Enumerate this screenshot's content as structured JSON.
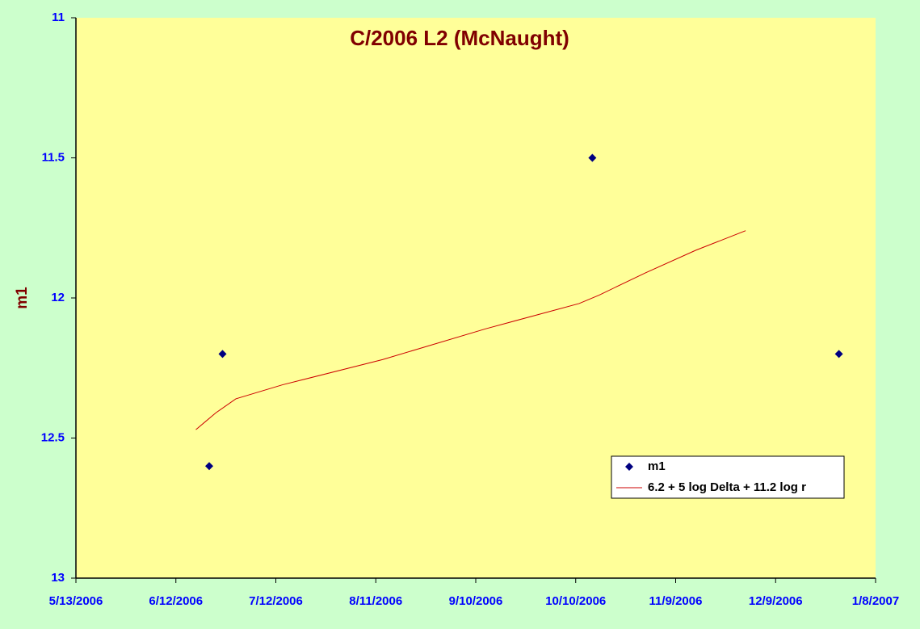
{
  "chart_data": {
    "type": "scatter",
    "title": "C/2006 L2 (McNaught)",
    "ylabel": "m1",
    "ylim": [
      11,
      13
    ],
    "y_reversed": true,
    "yticks": [
      11,
      11.5,
      12,
      12.5,
      13
    ],
    "xlim": [
      "2006-05-13",
      "2007-01-08"
    ],
    "xticks": [
      {
        "value": "2006-05-13",
        "label": "5/13/2006"
      },
      {
        "value": "2006-06-12",
        "label": "6/12/2006"
      },
      {
        "value": "2006-07-12",
        "label": "7/12/2006"
      },
      {
        "value": "2006-08-11",
        "label": "8/11/2006"
      },
      {
        "value": "2006-09-10",
        "label": "9/10/2006"
      },
      {
        "value": "2006-10-10",
        "label": "10/10/2006"
      },
      {
        "value": "2006-11-09",
        "label": "11/9/2006"
      },
      {
        "value": "2006-12-09",
        "label": "12/9/2006"
      },
      {
        "value": "2007-01-08",
        "label": "1/8/2007"
      }
    ],
    "legend": "lower right",
    "series": [
      {
        "name": "m1",
        "kind": "markers",
        "color": "#000080",
        "x": [
          "2006-06-22",
          "2006-06-26",
          "2006-10-15",
          "2006-12-28"
        ],
        "values": [
          12.6,
          12.2,
          11.5,
          12.2
        ]
      },
      {
        "name": "6.2 + 5 log Delta + 11.2 log r",
        "kind": "line",
        "color": "#cc0000",
        "x": [
          "2006-06-18",
          "2006-06-24",
          "2006-06-30",
          "2006-07-14",
          "2006-08-13",
          "2006-09-13",
          "2006-10-11",
          "2006-10-17",
          "2006-10-31",
          "2006-11-15",
          "2006-11-30"
        ],
        "values": [
          12.47,
          12.41,
          12.36,
          12.31,
          12.22,
          12.11,
          12.02,
          11.99,
          11.91,
          11.83,
          11.76
        ]
      }
    ]
  }
}
